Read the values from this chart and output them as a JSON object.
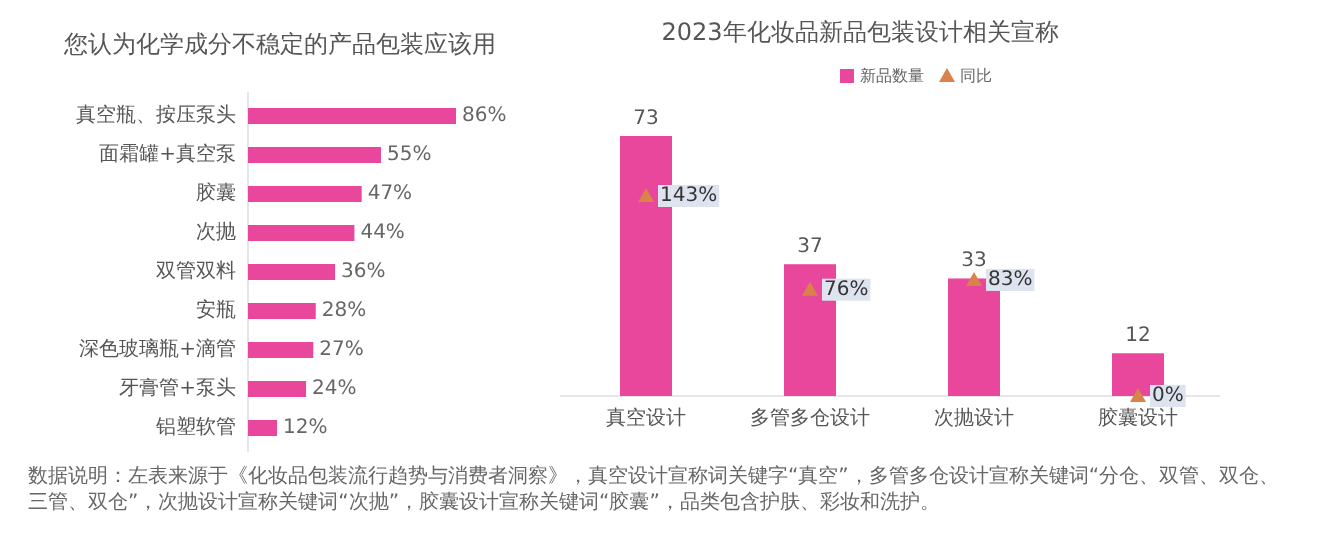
{
  "chart_data": [
    {
      "type": "bar",
      "orientation": "horizontal",
      "title": "您认为化学成分不稳定的产品包装应该用",
      "categories": [
        "真空瓶、按压泵头",
        "面霜罐+真空泵",
        "胶囊",
        "次抛",
        "双管双料",
        "安瓶",
        "深色玻璃瓶+滴管",
        "牙膏管+泵头",
        "铝塑软管"
      ],
      "values": [
        86,
        55,
        47,
        44,
        36,
        28,
        27,
        24,
        12
      ],
      "value_labels": [
        "86%",
        "55%",
        "47%",
        "44%",
        "36%",
        "28%",
        "27%",
        "24%",
        "12%"
      ],
      "color": "#e8479c",
      "annotations": [
        "数据说明：左表来源于《化妆品包装流行趋势与消费者洞察》，真空设计宣称词关键字“真空”，多管多仓设计宣称关键词“分仓、双管、双仓、三管、双仓”，次抛设计宣称关键词“次抛”，胶囊设计宣称关键词“胶囊”，品类包含护肤、彩妆和洗护。"
      ]
    },
    {
      "type": "bar",
      "title": "2023年化妆品新品包装设计相关宣称",
      "categories": [
        "真空设计",
        "多管多仓设计",
        "次抛设计",
        "胶囊设计"
      ],
      "series": [
        {
          "name": "新品数量",
          "type": "bar",
          "color": "#e8479c",
          "values": [
            73,
            37,
            33,
            12
          ]
        },
        {
          "name": "同比",
          "type": "scatter",
          "axis": "y2",
          "marker": "triangle",
          "color": "#d9824a",
          "values": [
            143,
            76,
            83,
            0
          ],
          "value_labels": [
            "143%",
            "76%",
            "83%",
            "0%"
          ]
        }
      ],
      "data_labels": true,
      "legend": "top"
    }
  ]
}
